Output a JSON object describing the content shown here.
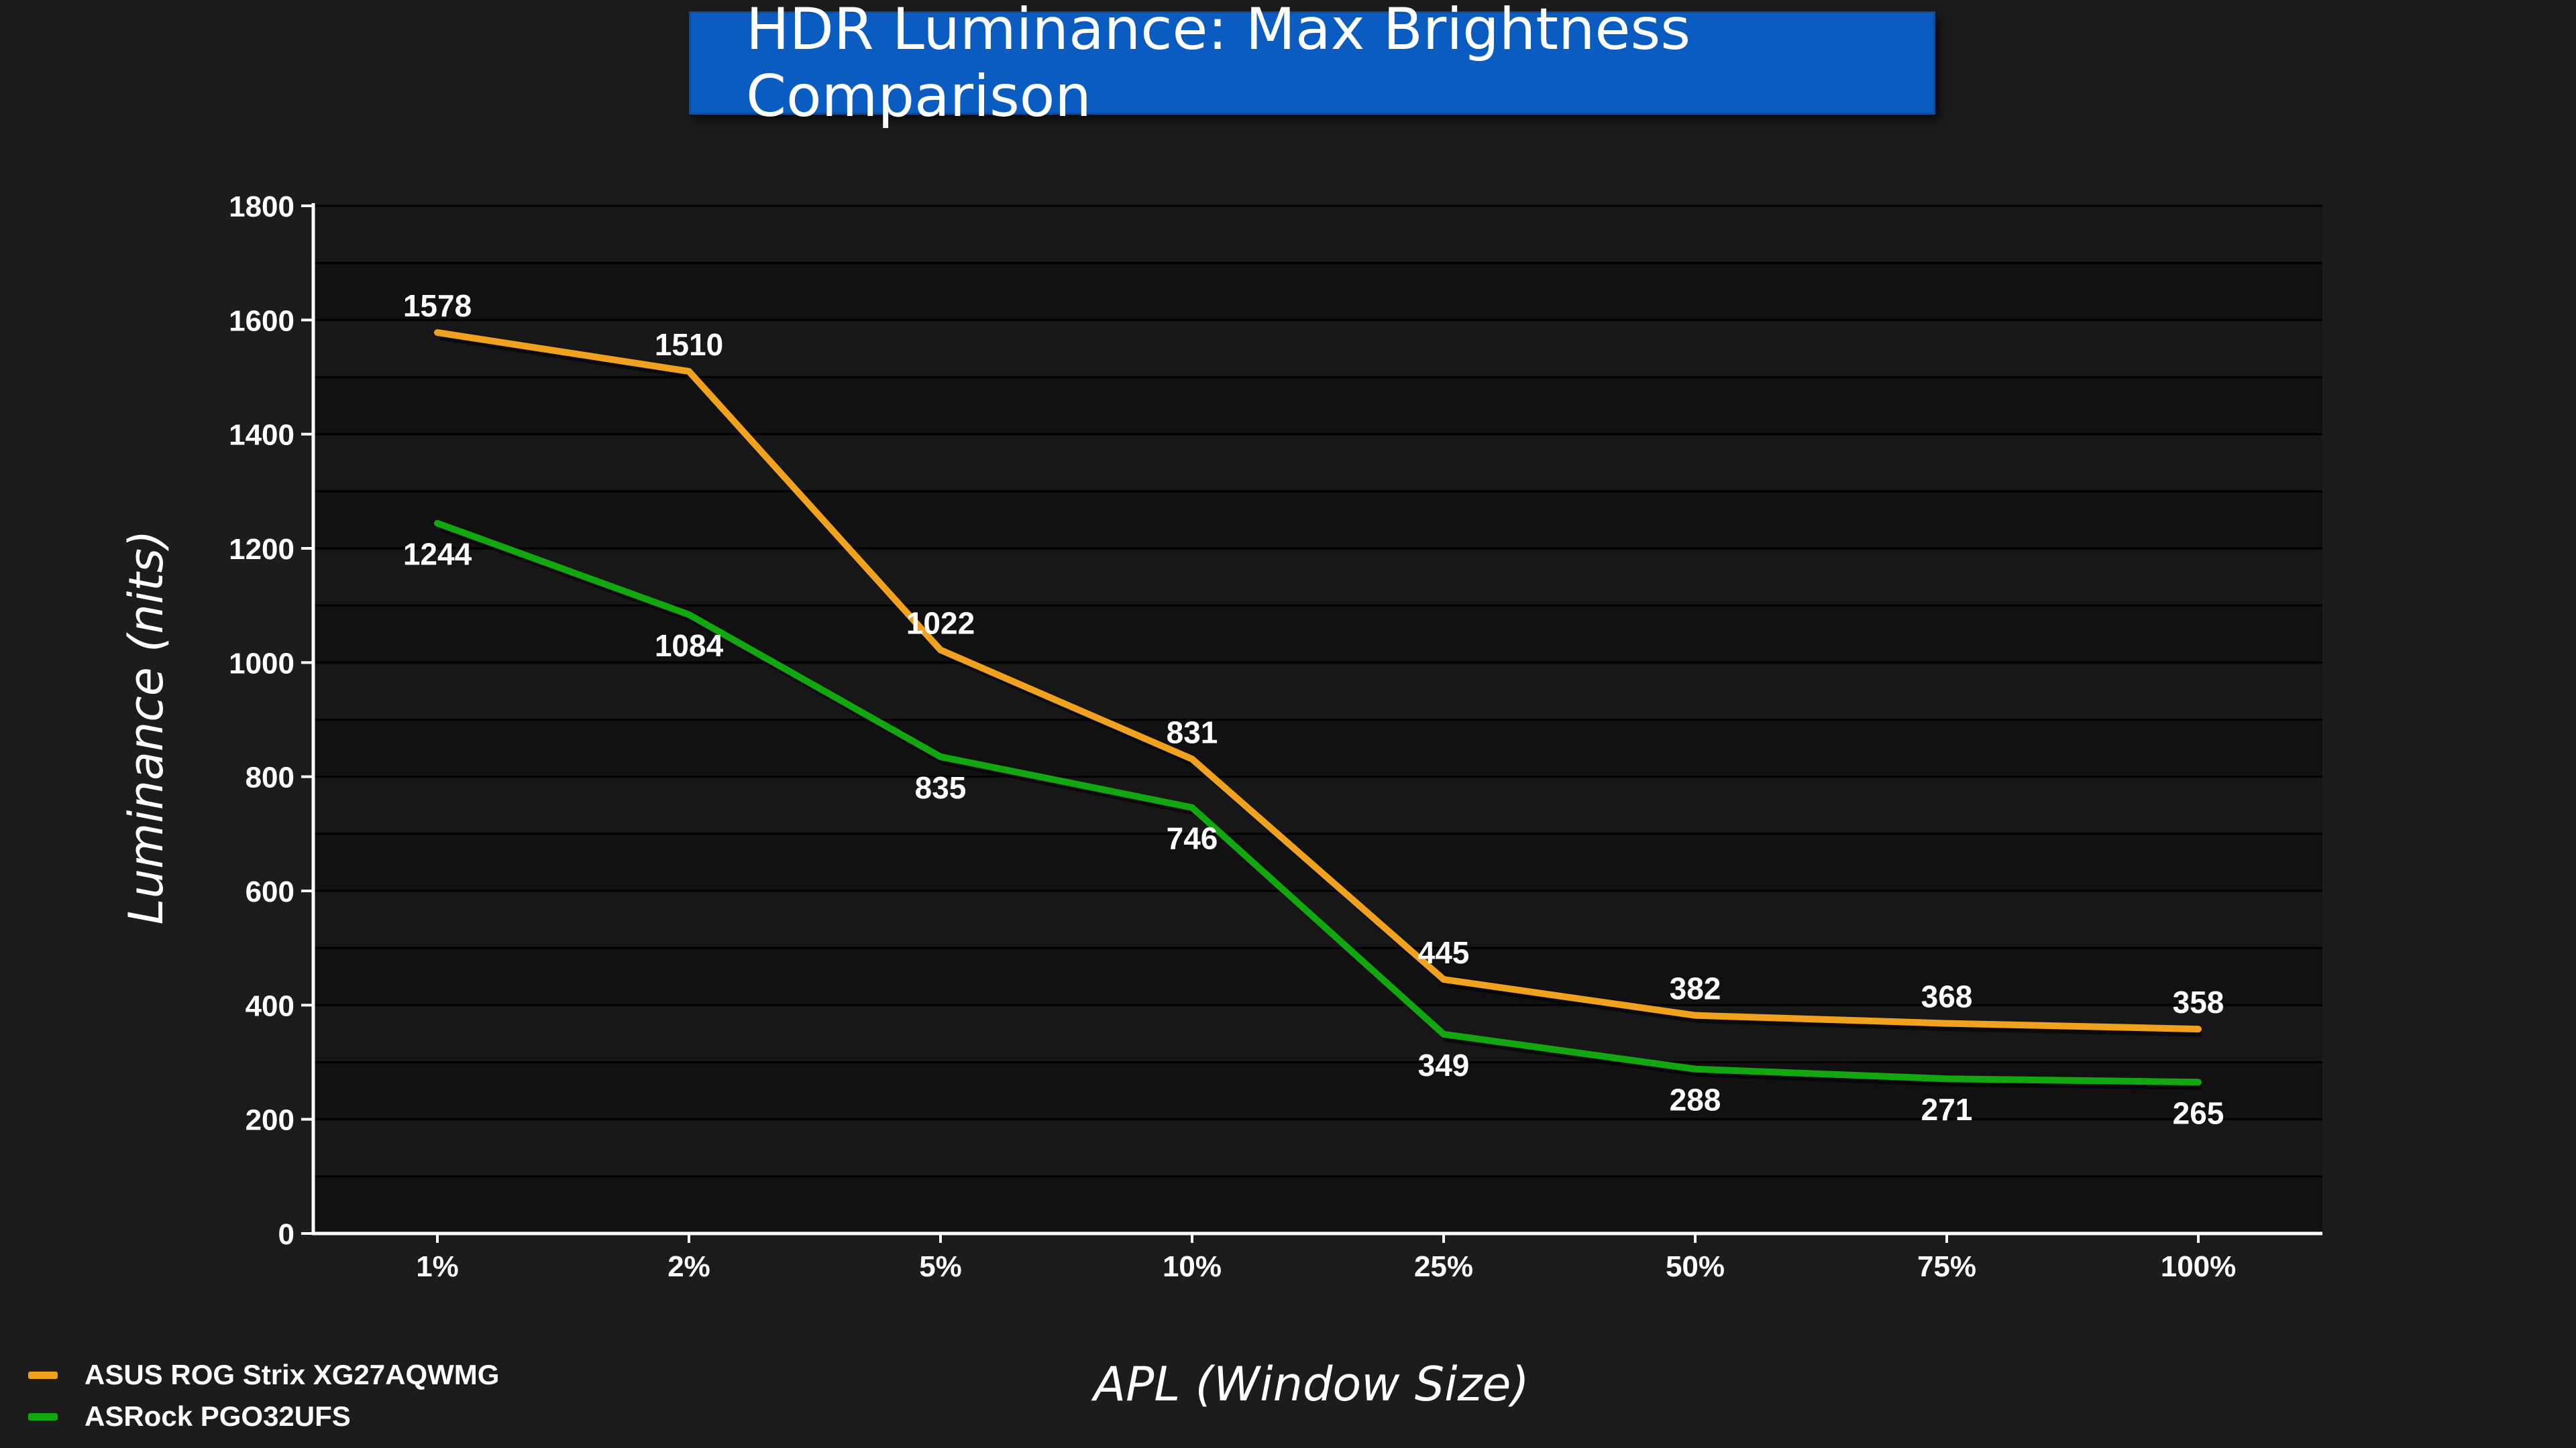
{
  "chart_data": {
    "type": "line",
    "title": "HDR Luminance: Max Brightness Comparison",
    "xlabel": "APL (Window Size)",
    "ylabel": "Luminance (nits)",
    "categories": [
      "1%",
      "2%",
      "5%",
      "10%",
      "25%",
      "50%",
      "75%",
      "100%"
    ],
    "ylim": [
      0,
      1800
    ],
    "yticks": [
      0,
      200,
      400,
      600,
      800,
      1000,
      1200,
      1400,
      1600,
      1800
    ],
    "grid": true,
    "legend_position": "bottom-left",
    "series": [
      {
        "name": "ASUS ROG Strix XG27AQWMG",
        "color": "#f0a21e",
        "values": [
          1578,
          1510,
          1022,
          831,
          445,
          382,
          368,
          358
        ],
        "label_position": "above"
      },
      {
        "name": "ASRock PGO32UFS",
        "color": "#12a60f",
        "values": [
          1244,
          1084,
          835,
          746,
          349,
          288,
          271,
          265
        ],
        "label_position": "below"
      }
    ]
  }
}
